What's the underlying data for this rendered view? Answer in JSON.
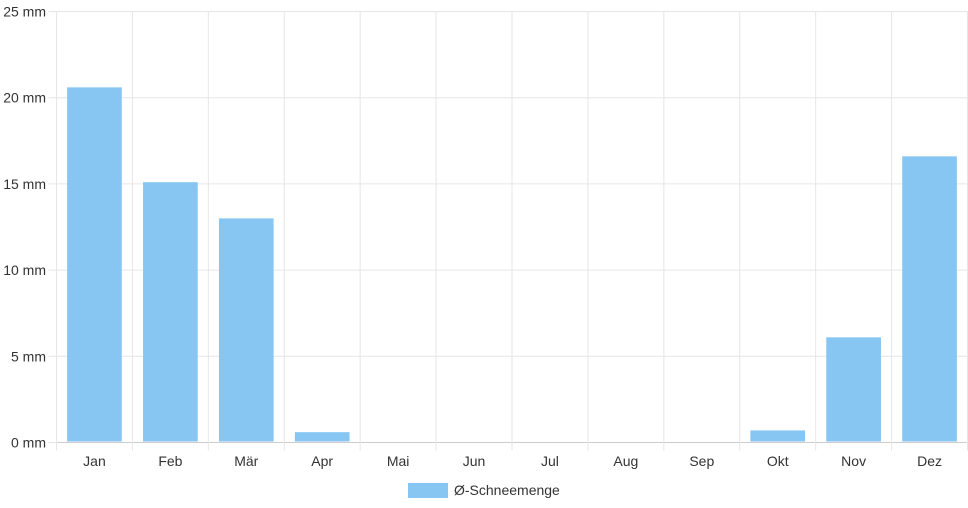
{
  "chart_data": {
    "type": "bar",
    "categories": [
      "Jan",
      "Feb",
      "Mär",
      "Apr",
      "Mai",
      "Jun",
      "Jul",
      "Aug",
      "Sep",
      "Okt",
      "Nov",
      "Dez"
    ],
    "series": [
      {
        "name": "Ø-Schneemenge",
        "values": [
          20.6,
          15.1,
          13.0,
          0.6,
          0,
          0,
          0,
          0,
          0,
          0.7,
          6.1,
          16.6
        ],
        "color": "#87C6F2"
      }
    ],
    "y_ticks": [
      "0 mm",
      "5 mm",
      "10 mm",
      "15 mm",
      "20 mm",
      "25 mm"
    ],
    "ylim": [
      0,
      25
    ],
    "unit": "mm",
    "grid": true,
    "legend_position": "bottom-center",
    "grid_color": "#e6e6e6",
    "axis_color": "#cccccc"
  }
}
